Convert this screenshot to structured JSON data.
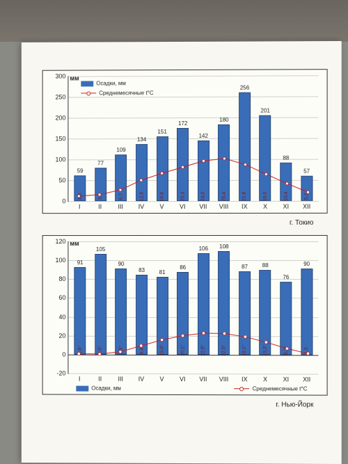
{
  "months": [
    "I",
    "II",
    "III",
    "IV",
    "V",
    "VI",
    "VII",
    "VIII",
    "IX",
    "X",
    "XI",
    "XII"
  ],
  "tokyo": {
    "city_label": "г. Токио",
    "y_unit": "мм",
    "y_max": 300,
    "y_ticks": [
      0,
      50,
      100,
      150,
      200,
      250,
      300
    ],
    "legend_precip": "Осадки, мм",
    "legend_temp": "Среднемесячные t°C",
    "precip": [
      59,
      77,
      109,
      134,
      151,
      172,
      142,
      180,
      256,
      201,
      88,
      57
    ],
    "temp": [
      3.0,
      3.9,
      6.7,
      12.5,
      16.6,
      20.3,
      24.0,
      25.4,
      21.8,
      16.0,
      10.4,
      5.2
    ],
    "temp_labels": [
      "3,0",
      "3,9",
      "6,7",
      "12,5",
      "16,6",
      "20,3",
      "24,0",
      "25,4",
      "21,8",
      "16,0",
      "10,4",
      "5,2"
    ],
    "bar_color": "#3a6db8",
    "line_color": "#c02020",
    "temp_scale_max": 300,
    "temp_mult": 4
  },
  "nyc": {
    "city_label": "г. Нью-Йорк",
    "y_unit": "мм",
    "y_min": -20,
    "y_max": 120,
    "y_ticks": [
      -20,
      0,
      20,
      40,
      60,
      80,
      100,
      120
    ],
    "legend_precip": "Осадки, мм",
    "legend_temp": "Среднемесячные t°C",
    "precip": [
      91,
      105,
      90,
      83,
      81,
      86,
      106,
      108,
      87,
      88,
      76,
      90
    ],
    "temp": [
      0.8,
      0.5,
      2.9,
      9.4,
      15.6,
      20.1,
      22.8,
      22.5,
      19.1,
      13.3,
      6.7,
      1.5
    ],
    "temp_labels": [
      "0,8°",
      "0,5°",
      "2,9°",
      "9,4°",
      "15,6°",
      "20,1°",
      "22,8°",
      "22,5°",
      "19,1°",
      "13,3°",
      "6,7°",
      "1,5"
    ],
    "bar_color": "#3a6db8",
    "line_color": "#c02020"
  }
}
